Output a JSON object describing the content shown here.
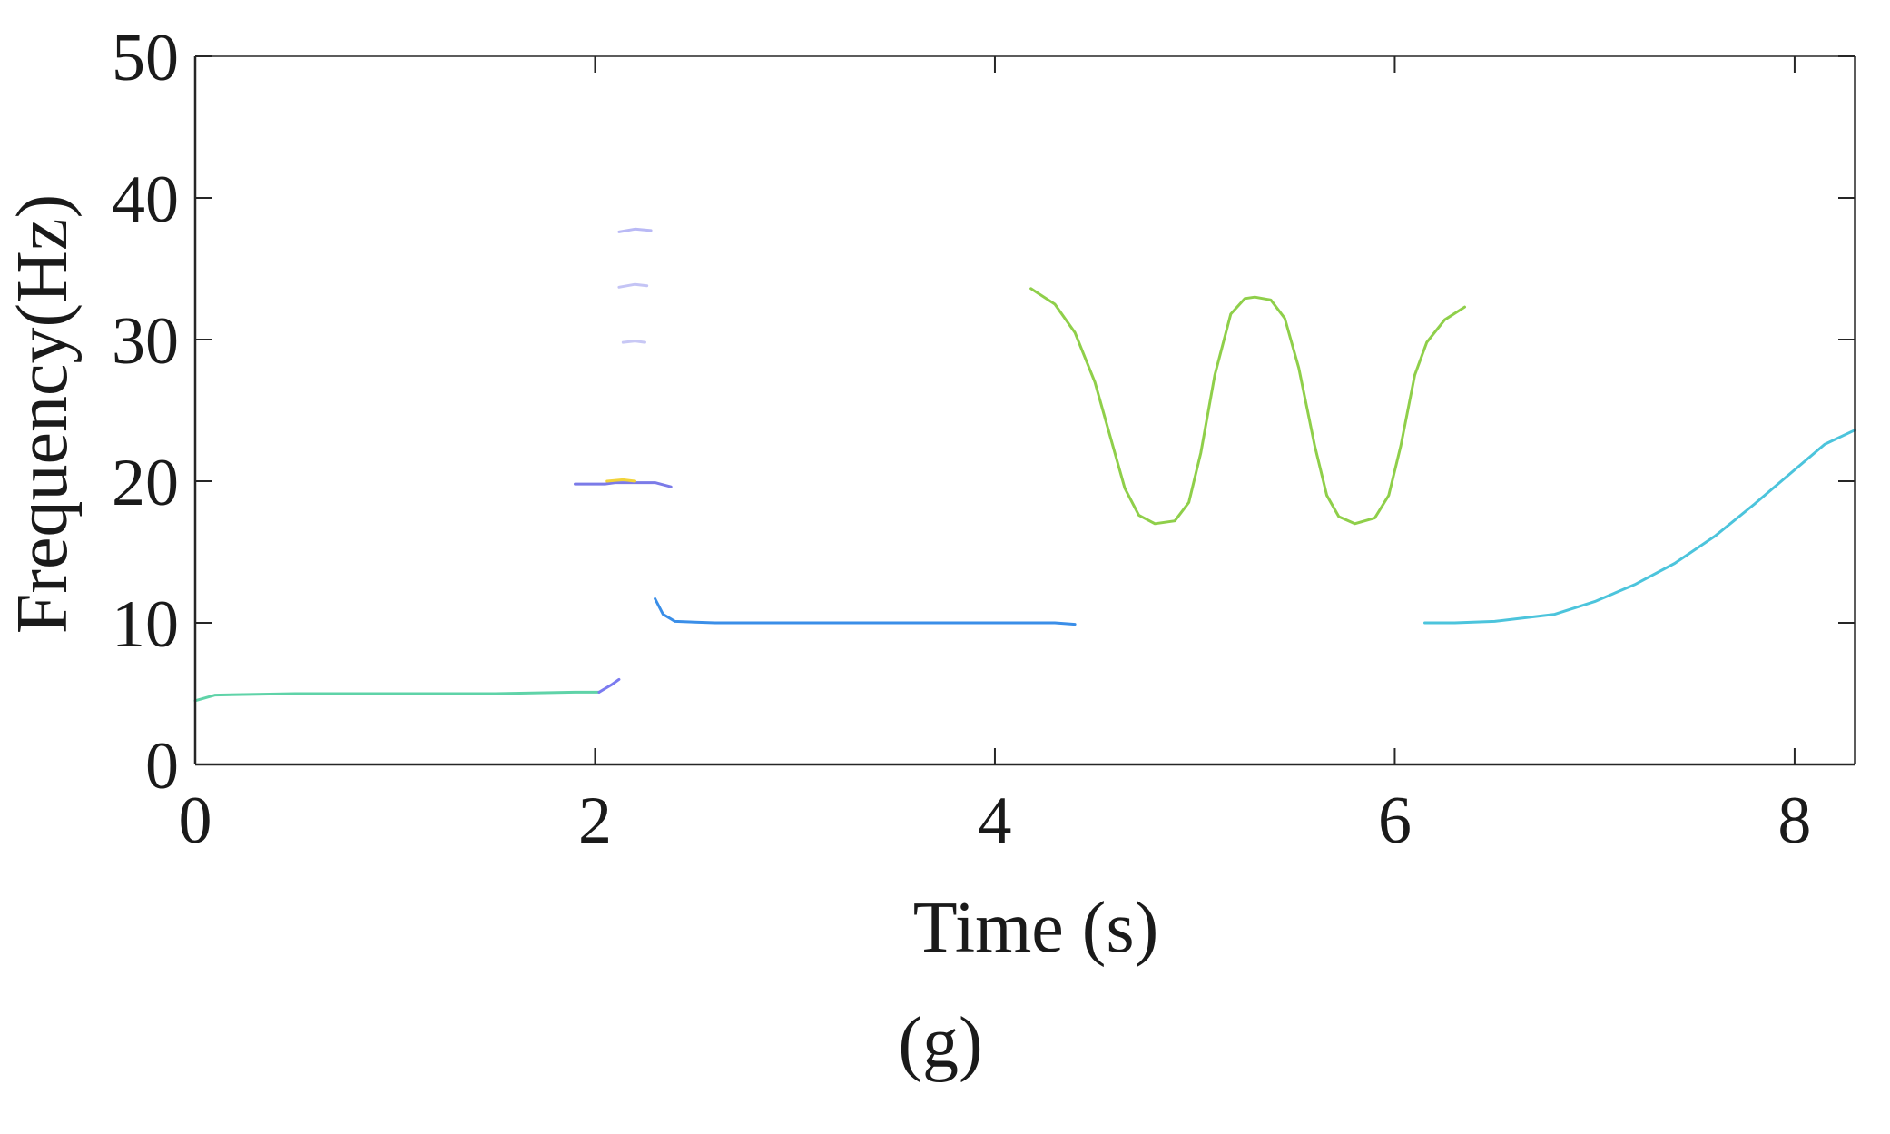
{
  "panel_label": "(g)",
  "chart_data": {
    "type": "line",
    "title": "",
    "xlabel": "Time (s)",
    "ylabel": "Frequency(Hz)",
    "xlim": [
      0,
      8.3
    ],
    "ylim": [
      0,
      50
    ],
    "xticks": [
      0,
      2,
      4,
      6,
      8
    ],
    "yticks": [
      0,
      10,
      20,
      30,
      40,
      50
    ],
    "grid": false,
    "legend": "none",
    "series": [
      {
        "color": "#5fd3a8",
        "points": [
          [
            0,
            4.5
          ],
          [
            0.1,
            4.9
          ],
          [
            0.5,
            5.0
          ],
          [
            1.0,
            5.0
          ],
          [
            1.5,
            5.0
          ],
          [
            1.9,
            5.1
          ],
          [
            2.02,
            5.1
          ]
        ]
      },
      {
        "color": "#7b7bf0",
        "points": [
          [
            2.02,
            5.1
          ],
          [
            2.08,
            5.6
          ],
          [
            2.12,
            6.0
          ]
        ]
      },
      {
        "color": "#7b7be8",
        "points": [
          [
            1.9,
            19.8
          ],
          [
            2.05,
            19.8
          ],
          [
            2.1,
            19.9
          ],
          [
            2.2,
            19.9
          ],
          [
            2.3,
            19.9
          ],
          [
            2.38,
            19.6
          ]
        ]
      },
      {
        "color": "#f2d33a",
        "points": [
          [
            2.06,
            20.0
          ],
          [
            2.14,
            20.1
          ],
          [
            2.2,
            20.0
          ]
        ]
      },
      {
        "color": "#b9b9f5",
        "points": [
          [
            2.12,
            37.6
          ],
          [
            2.2,
            37.8
          ],
          [
            2.28,
            37.7
          ]
        ]
      },
      {
        "color": "#c4c4f5",
        "points": [
          [
            2.12,
            33.7
          ],
          [
            2.2,
            33.9
          ],
          [
            2.26,
            33.8
          ]
        ]
      },
      {
        "color": "#c8c8f5",
        "points": [
          [
            2.14,
            29.8
          ],
          [
            2.2,
            29.9
          ],
          [
            2.25,
            29.8
          ]
        ]
      },
      {
        "color": "#3a8ee8",
        "points": [
          [
            2.3,
            11.7
          ],
          [
            2.34,
            10.6
          ],
          [
            2.4,
            10.1
          ],
          [
            2.6,
            10.0
          ],
          [
            3.0,
            10.0
          ],
          [
            3.5,
            10.0
          ],
          [
            4.0,
            10.0
          ],
          [
            4.3,
            10.0
          ],
          [
            4.4,
            9.9
          ]
        ]
      },
      {
        "color": "#8fcf4a",
        "points": [
          [
            4.18,
            33.6
          ],
          [
            4.3,
            32.5
          ],
          [
            4.4,
            30.5
          ],
          [
            4.5,
            27.0
          ],
          [
            4.58,
            23.0
          ],
          [
            4.65,
            19.5
          ],
          [
            4.72,
            17.6
          ],
          [
            4.8,
            17.0
          ],
          [
            4.9,
            17.2
          ],
          [
            4.97,
            18.5
          ],
          [
            5.03,
            22.0
          ],
          [
            5.1,
            27.5
          ],
          [
            5.18,
            31.8
          ],
          [
            5.25,
            32.9
          ],
          [
            5.3,
            33.0
          ],
          [
            5.38,
            32.8
          ],
          [
            5.45,
            31.5
          ],
          [
            5.52,
            28.0
          ],
          [
            5.6,
            22.5
          ],
          [
            5.66,
            19.0
          ],
          [
            5.72,
            17.5
          ],
          [
            5.8,
            17.0
          ],
          [
            5.9,
            17.4
          ],
          [
            5.97,
            19.0
          ],
          [
            6.03,
            22.5
          ],
          [
            6.1,
            27.5
          ],
          [
            6.16,
            29.8
          ],
          [
            6.25,
            31.4
          ],
          [
            6.35,
            32.3
          ]
        ]
      },
      {
        "color": "#4cc4dc",
        "points": [
          [
            6.15,
            10.0
          ],
          [
            6.3,
            10.0
          ],
          [
            6.5,
            10.1
          ],
          [
            6.8,
            10.6
          ],
          [
            7.0,
            11.5
          ],
          [
            7.2,
            12.7
          ],
          [
            7.4,
            14.2
          ],
          [
            7.6,
            16.1
          ],
          [
            7.8,
            18.4
          ],
          [
            8.0,
            20.8
          ],
          [
            8.15,
            22.6
          ],
          [
            8.3,
            23.6
          ]
        ]
      }
    ]
  }
}
